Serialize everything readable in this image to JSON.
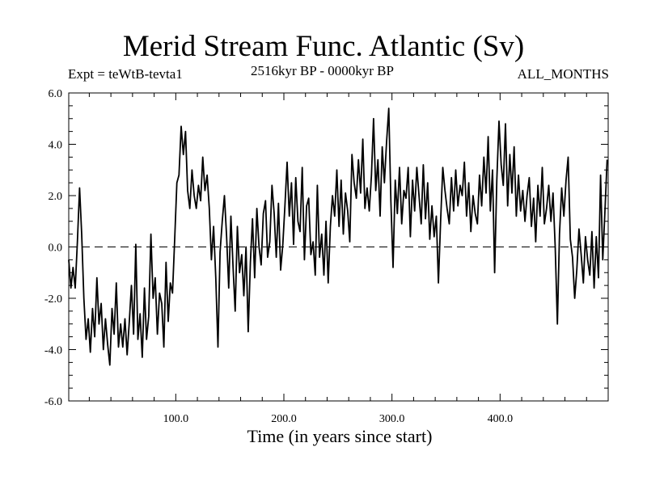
{
  "chart_data": {
    "type": "line",
    "title": "Merid Stream Func. Atlantic (Sv)",
    "subtitle_left": "Expt = teWtB-tevta1",
    "subtitle_center": "2516kyr BP - 0000kyr BP",
    "subtitle_right": "ALL_MONTHS",
    "xlabel": "Time (in years since start)",
    "ylabel": "",
    "xlim": [
      1,
      500
    ],
    "ylim": [
      -6.0,
      6.0
    ],
    "x_ticks": [
      100,
      200,
      300,
      400
    ],
    "x_tick_labels": [
      "100.0",
      "200.0",
      "300.0",
      "400.0"
    ],
    "y_ticks": [
      6.0,
      4.0,
      2.0,
      0.0,
      -2.0,
      -4.0,
      -6.0
    ],
    "y_tick_labels": [
      "6.0",
      "4.0",
      "2.0",
      "0.0",
      "-2.0",
      "-4.0",
      "-6.0"
    ],
    "reference_line": {
      "y": 0.0,
      "style": "dashed"
    },
    "series": [
      {
        "name": "Merid Stream Func. Atlantic",
        "x": [
          1,
          3,
          5,
          7,
          9,
          11,
          13,
          15,
          17,
          19,
          21,
          23,
          25,
          27,
          29,
          31,
          33,
          35,
          37,
          39,
          41,
          43,
          45,
          47,
          49,
          51,
          53,
          55,
          57,
          59,
          61,
          63,
          65,
          67,
          69,
          71,
          73,
          75,
          77,
          79,
          81,
          83,
          85,
          87,
          89,
          91,
          93,
          95,
          97,
          99,
          101,
          103,
          105,
          107,
          109,
          111,
          113,
          115,
          117,
          119,
          121,
          123,
          125,
          127,
          129,
          131,
          133,
          135,
          137,
          139,
          141,
          143,
          145,
          147,
          149,
          151,
          153,
          155,
          157,
          159,
          161,
          163,
          165,
          167,
          169,
          171,
          173,
          175,
          177,
          179,
          181,
          183,
          185,
          187,
          189,
          191,
          193,
          195,
          197,
          199,
          201,
          203,
          205,
          207,
          209,
          211,
          213,
          215,
          217,
          219,
          221,
          223,
          225,
          227,
          229,
          231,
          233,
          235,
          237,
          239,
          241,
          243,
          245,
          247,
          249,
          251,
          253,
          255,
          257,
          259,
          261,
          263,
          265,
          267,
          269,
          271,
          273,
          275,
          277,
          279,
          281,
          283,
          285,
          287,
          289,
          291,
          293,
          295,
          297,
          299,
          301,
          303,
          305,
          307,
          309,
          311,
          313,
          315,
          317,
          319,
          321,
          323,
          325,
          327,
          329,
          331,
          333,
          335,
          337,
          339,
          341,
          343,
          345,
          347,
          349,
          351,
          353,
          355,
          357,
          359,
          361,
          363,
          365,
          367,
          369,
          371,
          373,
          375,
          377,
          379,
          381,
          383,
          385,
          387,
          389,
          391,
          393,
          395,
          397,
          399,
          401,
          403,
          405,
          407,
          409,
          411,
          413,
          415,
          417,
          419,
          421,
          423,
          425,
          427,
          429,
          431,
          433,
          435,
          437,
          439,
          441,
          443,
          445,
          447,
          449,
          451,
          453,
          455,
          457,
          459,
          461,
          463,
          465,
          467,
          469,
          471,
          473,
          475,
          477,
          479,
          481,
          483,
          485,
          487,
          489,
          491,
          493,
          495,
          497,
          499
        ],
        "values": [
          -0.5,
          -1.6,
          -0.8,
          -1.6,
          0.2,
          2.3,
          0.5,
          -2.0,
          -3.6,
          -2.8,
          -4.1,
          -2.4,
          -3.5,
          -1.2,
          -3.0,
          -2.2,
          -4.0,
          -2.8,
          -3.8,
          -4.6,
          -2.4,
          -3.4,
          -1.4,
          -3.9,
          -3.0,
          -3.9,
          -2.8,
          -4.2,
          -2.9,
          -1.5,
          -3.4,
          0.1,
          -3.6,
          -2.6,
          -4.3,
          -1.6,
          -3.6,
          -2.7,
          0.5,
          -2.0,
          -1.2,
          -3.4,
          -1.8,
          -2.2,
          -3.9,
          -0.6,
          -2.9,
          -1.4,
          -1.8,
          0.3,
          2.5,
          2.8,
          4.7,
          3.6,
          4.5,
          2.2,
          1.5,
          3.0,
          2.0,
          1.5,
          2.4,
          1.8,
          3.5,
          2.2,
          2.8,
          1.5,
          -0.5,
          0.8,
          -1.2,
          -3.9,
          -0.2,
          1.0,
          2.0,
          0.4,
          -1.6,
          1.2,
          -0.8,
          -2.5,
          0.8,
          -1.0,
          -0.3,
          -1.9,
          0.0,
          -3.3,
          -0.6,
          1.1,
          -1.2,
          1.5,
          0.0,
          -0.7,
          1.3,
          1.8,
          -0.4,
          0.2,
          2.4,
          1.3,
          -0.4,
          1.7,
          -0.9,
          0.1,
          1.6,
          3.3,
          1.2,
          2.5,
          0.1,
          2.7,
          1.0,
          0.6,
          3.1,
          -0.5,
          1.6,
          1.9,
          -0.3,
          0.2,
          -1.1,
          2.4,
          -0.4,
          0.5,
          -1.1,
          1.0,
          -1.4,
          0.8,
          2.0,
          1.2,
          3.0,
          0.8,
          2.6,
          0.5,
          2.1,
          1.4,
          0.2,
          3.6,
          2.5,
          1.9,
          3.4,
          2.1,
          4.2,
          1.5,
          2.3,
          1.4,
          2.8,
          5.0,
          2.2,
          3.4,
          1.2,
          3.9,
          2.5,
          4.1,
          5.4,
          1.8,
          -0.8,
          2.6,
          1.3,
          3.1,
          0.9,
          2.2,
          1.9,
          3.1,
          0.4,
          2.6,
          1.4,
          3.1,
          2.0,
          0.9,
          3.2,
          1.1,
          2.5,
          0.3,
          1.6,
          0.4,
          1.2,
          -1.4,
          1.0,
          3.1,
          2.2,
          1.5,
          0.9,
          2.7,
          1.4,
          3.0,
          1.6,
          2.4,
          2.0,
          3.3,
          1.2,
          2.5,
          0.6,
          2.0,
          1.3,
          0.9,
          2.8,
          1.6,
          3.5,
          2.1,
          4.3,
          1.4,
          3.0,
          -1.0,
          2.6,
          4.9,
          3.2,
          2.4,
          4.8,
          1.6,
          3.6,
          2.1,
          3.9,
          1.2,
          2.8,
          1.4,
          2.2,
          1.0,
          2.0,
          2.7,
          0.8,
          1.9,
          0.2,
          2.4,
          1.2,
          3.1,
          0.9,
          1.5,
          2.4,
          1.0,
          2.1,
          0.0,
          -3.0,
          0.5,
          2.3,
          1.2,
          2.6,
          3.5,
          0.3,
          -0.4,
          -2.0,
          -0.9,
          0.7,
          -0.3,
          -1.4,
          0.4,
          -0.5,
          -1.1,
          0.6,
          -1.6,
          0.4,
          -1.2,
          2.8,
          -0.5,
          1.4,
          3.4
        ]
      }
    ]
  }
}
